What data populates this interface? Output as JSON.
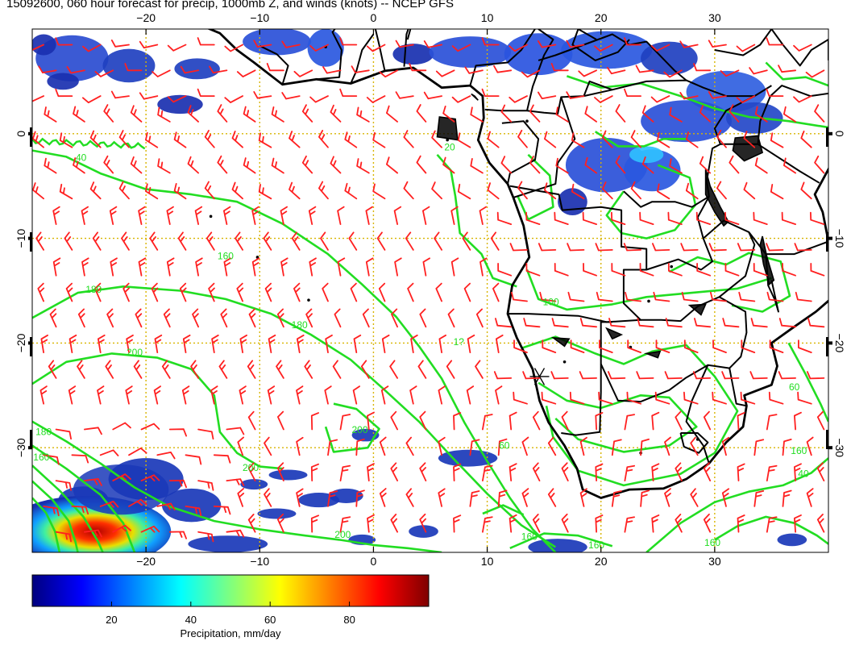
{
  "title": "15092600, 060 hour forecast for precip, 1000mb Z, and winds (knots) -- NCEP GFS",
  "map": {
    "lon_range": [
      -30,
      40
    ],
    "lat_range": [
      -40,
      10
    ],
    "lon_ticks": [
      -20,
      -10,
      0,
      10,
      20,
      30
    ],
    "lat_ticks": [
      0,
      -10,
      -20,
      -30
    ],
    "lon_tick_labels": [
      "−20",
      "−10",
      "0",
      "10",
      "20",
      "30"
    ],
    "lat_tick_labels": [
      "0",
      "−10",
      "−20",
      "−30"
    ],
    "grid": true,
    "contour_color": "#22dd22",
    "wind_barb_color": "#ff2020",
    "coast_color": "#000000",
    "contour_labels": [
      {
        "text": "40",
        "lon": -25.7,
        "lat": -2.6
      },
      {
        "text": "160",
        "lon": -13,
        "lat": -12
      },
      {
        "text": "180",
        "lon": -24.6,
        "lat": -15.2
      },
      {
        "text": "180",
        "lon": -6.5,
        "lat": -18.6
      },
      {
        "text": "200",
        "lon": -21,
        "lat": -21.2
      },
      {
        "text": "180",
        "lon": -29,
        "lat": -28.8
      },
      {
        "text": "160",
        "lon": -29.2,
        "lat": -31.2
      },
      {
        "text": "200",
        "lon": -10.8,
        "lat": -32.2
      },
      {
        "text": "200",
        "lon": -1.2,
        "lat": -28.6
      },
      {
        "text": "200",
        "lon": -2.7,
        "lat": -38.6
      },
      {
        "text": "160",
        "lon": 13.7,
        "lat": -38.8
      },
      {
        "text": "160",
        "lon": 19.6,
        "lat": -39.6
      },
      {
        "text": "160",
        "lon": 29.8,
        "lat": -39.4
      },
      {
        "text": "60",
        "lon": 11.5,
        "lat": -30.1
      },
      {
        "text": "100",
        "lon": 15.6,
        "lat": -16.4
      },
      {
        "text": "60",
        "lon": 37,
        "lat": -24.5
      },
      {
        "text": "160",
        "lon": 37.4,
        "lat": -30.6
      },
      {
        "text": "40",
        "lon": 37.8,
        "lat": -32.8
      },
      {
        "text": "20",
        "lon": 6.7,
        "lat": -1.6
      },
      {
        "text": "1?",
        "lon": 7.5,
        "lat": -20.2
      }
    ],
    "marker": {
      "name": "station-marker",
      "lon": 14.6,
      "lat": -23.2
    }
  },
  "colorbar": {
    "ticks": [
      20,
      40,
      60,
      80
    ],
    "range": [
      0,
      100
    ],
    "label": "Precipitation, mm/day"
  }
}
